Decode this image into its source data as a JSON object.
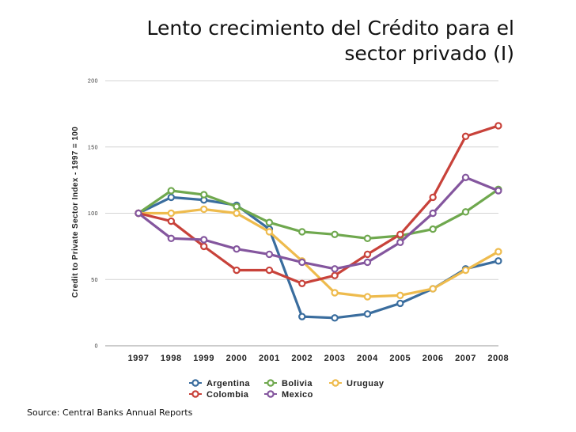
{
  "title": {
    "line1": "Lento crecimiento del Crédito para el",
    "line2": "sector privado (I)"
  },
  "source": "Source: Central Banks Annual Reports",
  "chart_data": {
    "type": "line",
    "title": "Lento crecimiento del Crédito para el sector privado (I)",
    "xlabel": "",
    "ylabel": "Credit to Private Sector Index - 1997 = 100",
    "ylim": [
      0,
      200
    ],
    "yticks": [
      "0",
      "50",
      "100",
      "150",
      "200"
    ],
    "categories": [
      "1997",
      "1998",
      "1999",
      "2000",
      "2001",
      "2002",
      "2003",
      "2004",
      "2005",
      "2006",
      "2007",
      "2008"
    ],
    "grid": true,
    "legend_position": "bottom",
    "series": [
      {
        "name": "Argentina",
        "color": "#3a6d9e",
        "values": [
          100,
          112,
          110,
          106,
          88,
          22,
          21,
          24,
          32,
          43,
          58,
          64
        ]
      },
      {
        "name": "Bolivia",
        "color": "#6fa84e",
        "values": [
          100,
          117,
          114,
          105,
          93,
          86,
          84,
          81,
          83,
          88,
          101,
          118
        ]
      },
      {
        "name": "Uruguay",
        "color": "#eebb4d",
        "values": [
          100,
          100,
          103,
          100,
          86,
          64,
          40,
          37,
          38,
          43,
          57,
          71
        ]
      },
      {
        "name": "Colombia",
        "color": "#c8423a",
        "values": [
          100,
          94,
          75,
          57,
          57,
          47,
          53,
          69,
          84,
          112,
          158,
          166
        ]
      },
      {
        "name": "Mexico",
        "color": "#84569e",
        "values": [
          100,
          81,
          80,
          73,
          69,
          63,
          58,
          63,
          78,
          100,
          127,
          117
        ]
      }
    ]
  }
}
